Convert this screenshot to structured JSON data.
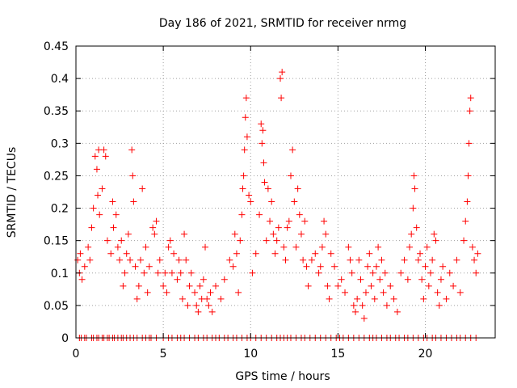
{
  "chart_data": {
    "type": "scatter",
    "title": "Day 186 of 2021, SRMTID for receiver nrmg",
    "xlabel": "GPS time / hours",
    "ylabel": "SRMTID / TECUs",
    "xlim": [
      0,
      24
    ],
    "ylim": [
      0,
      0.45
    ],
    "xticks": [
      "0",
      "5",
      "10",
      "15",
      "20"
    ],
    "yticks": [
      "0",
      "0.05",
      "0.1",
      "0.15",
      "0.2",
      "0.25",
      "0.3",
      "0.35",
      "0.4",
      "0.45"
    ],
    "grid": true,
    "marker": "+",
    "color": "#ff0000",
    "series": [
      {
        "name": "SRMTID",
        "points": [
          [
            0.1,
            0.12
          ],
          [
            0.2,
            0.1
          ],
          [
            0.25,
            0.13
          ],
          [
            0.35,
            0.09
          ],
          [
            0.5,
            0.11
          ],
          [
            0.7,
            0.14
          ],
          [
            0.8,
            0.12
          ],
          [
            0.9,
            0.17
          ],
          [
            1.0,
            0.2
          ],
          [
            1.1,
            0.28
          ],
          [
            1.2,
            0.26
          ],
          [
            1.25,
            0.22
          ],
          [
            1.3,
            0.29
          ],
          [
            1.35,
            0.19
          ],
          [
            1.5,
            0.23
          ],
          [
            1.6,
            0.29
          ],
          [
            1.7,
            0.28
          ],
          [
            1.8,
            0.15
          ],
          [
            2.0,
            0.13
          ],
          [
            2.1,
            0.21
          ],
          [
            2.15,
            0.17
          ],
          [
            2.3,
            0.19
          ],
          [
            2.4,
            0.14
          ],
          [
            2.5,
            0.12
          ],
          [
            2.6,
            0.15
          ],
          [
            2.7,
            0.08
          ],
          [
            2.8,
            0.1
          ],
          [
            2.9,
            0.13
          ],
          [
            3.0,
            0.16
          ],
          [
            3.1,
            0.12
          ],
          [
            3.2,
            0.29
          ],
          [
            3.25,
            0.25
          ],
          [
            3.3,
            0.21
          ],
          [
            3.4,
            0.11
          ],
          [
            3.5,
            0.06
          ],
          [
            3.6,
            0.08
          ],
          [
            3.7,
            0.12
          ],
          [
            3.8,
            0.23
          ],
          [
            3.9,
            0.1
          ],
          [
            4.0,
            0.14
          ],
          [
            4.1,
            0.07
          ],
          [
            4.2,
            0.11
          ],
          [
            4.4,
            0.17
          ],
          [
            4.5,
            0.16
          ],
          [
            4.6,
            0.18
          ],
          [
            4.7,
            0.1
          ],
          [
            4.8,
            0.12
          ],
          [
            5.0,
            0.08
          ],
          [
            5.1,
            0.1
          ],
          [
            5.2,
            0.07
          ],
          [
            5.3,
            0.14
          ],
          [
            5.4,
            0.15
          ],
          [
            5.5,
            0.1
          ],
          [
            5.6,
            0.13
          ],
          [
            5.8,
            0.09
          ],
          [
            5.9,
            0.12
          ],
          [
            6.0,
            0.1
          ],
          [
            6.1,
            0.06
          ],
          [
            6.2,
            0.16
          ],
          [
            6.3,
            0.12
          ],
          [
            6.4,
            0.05
          ],
          [
            6.5,
            0.08
          ],
          [
            6.6,
            0.1
          ],
          [
            6.8,
            0.07
          ],
          [
            6.9,
            0.05
          ],
          [
            7.0,
            0.04
          ],
          [
            7.1,
            0.08
          ],
          [
            7.2,
            0.06
          ],
          [
            7.3,
            0.09
          ],
          [
            7.4,
            0.14
          ],
          [
            7.5,
            0.06
          ],
          [
            7.6,
            0.05
          ],
          [
            7.7,
            0.07
          ],
          [
            7.8,
            0.04
          ],
          [
            8.0,
            0.08
          ],
          [
            8.3,
            0.06
          ],
          [
            8.5,
            0.09
          ],
          [
            8.8,
            0.12
          ],
          [
            9.0,
            0.11
          ],
          [
            9.1,
            0.16
          ],
          [
            9.2,
            0.13
          ],
          [
            9.3,
            0.07
          ],
          [
            9.4,
            0.15
          ],
          [
            9.5,
            0.19
          ],
          [
            9.55,
            0.23
          ],
          [
            9.6,
            0.25
          ],
          [
            9.65,
            0.29
          ],
          [
            9.7,
            0.34
          ],
          [
            9.75,
            0.37
          ],
          [
            9.8,
            0.31
          ],
          [
            9.9,
            0.22
          ],
          [
            10.0,
            0.21
          ],
          [
            10.1,
            0.1
          ],
          [
            10.3,
            0.13
          ],
          [
            10.5,
            0.19
          ],
          [
            10.6,
            0.33
          ],
          [
            10.65,
            0.3
          ],
          [
            10.7,
            0.32
          ],
          [
            10.75,
            0.27
          ],
          [
            10.8,
            0.24
          ],
          [
            10.9,
            0.15
          ],
          [
            11.0,
            0.23
          ],
          [
            11.1,
            0.18
          ],
          [
            11.2,
            0.21
          ],
          [
            11.3,
            0.16
          ],
          [
            11.4,
            0.13
          ],
          [
            11.5,
            0.15
          ],
          [
            11.6,
            0.17
          ],
          [
            11.7,
            0.4
          ],
          [
            11.75,
            0.37
          ],
          [
            11.8,
            0.41
          ],
          [
            11.9,
            0.14
          ],
          [
            12.0,
            0.12
          ],
          [
            12.1,
            0.17
          ],
          [
            12.2,
            0.18
          ],
          [
            12.3,
            0.25
          ],
          [
            12.4,
            0.29
          ],
          [
            12.5,
            0.21
          ],
          [
            12.6,
            0.14
          ],
          [
            12.7,
            0.23
          ],
          [
            12.8,
            0.19
          ],
          [
            12.9,
            0.16
          ],
          [
            13.0,
            0.12
          ],
          [
            13.1,
            0.18
          ],
          [
            13.2,
            0.11
          ],
          [
            13.3,
            0.08
          ],
          [
            13.5,
            0.12
          ],
          [
            13.7,
            0.13
          ],
          [
            13.9,
            0.1
          ],
          [
            14.0,
            0.11
          ],
          [
            14.1,
            0.14
          ],
          [
            14.2,
            0.18
          ],
          [
            14.3,
            0.16
          ],
          [
            14.4,
            0.08
          ],
          [
            14.5,
            0.06
          ],
          [
            14.6,
            0.13
          ],
          [
            14.8,
            0.11
          ],
          [
            15.0,
            0.08
          ],
          [
            15.2,
            0.09
          ],
          [
            15.4,
            0.07
          ],
          [
            15.6,
            0.14
          ],
          [
            15.7,
            0.12
          ],
          [
            15.8,
            0.1
          ],
          [
            15.9,
            0.05
          ],
          [
            16.0,
            0.04
          ],
          [
            16.1,
            0.06
          ],
          [
            16.2,
            0.12
          ],
          [
            16.3,
            0.09
          ],
          [
            16.4,
            0.05
          ],
          [
            16.5,
            0.03
          ],
          [
            16.6,
            0.07
          ],
          [
            16.7,
            0.11
          ],
          [
            16.8,
            0.13
          ],
          [
            16.9,
            0.08
          ],
          [
            17.0,
            0.1
          ],
          [
            17.1,
            0.06
          ],
          [
            17.2,
            0.11
          ],
          [
            17.3,
            0.14
          ],
          [
            17.4,
            0.09
          ],
          [
            17.5,
            0.12
          ],
          [
            17.6,
            0.07
          ],
          [
            17.7,
            0.1
          ],
          [
            17.8,
            0.05
          ],
          [
            18.0,
            0.08
          ],
          [
            18.2,
            0.06
          ],
          [
            18.4,
            0.04
          ],
          [
            18.6,
            0.1
          ],
          [
            18.8,
            0.12
          ],
          [
            19.0,
            0.09
          ],
          [
            19.1,
            0.14
          ],
          [
            19.2,
            0.16
          ],
          [
            19.3,
            0.2
          ],
          [
            19.35,
            0.25
          ],
          [
            19.4,
            0.23
          ],
          [
            19.5,
            0.17
          ],
          [
            19.6,
            0.12
          ],
          [
            19.7,
            0.13
          ],
          [
            19.8,
            0.09
          ],
          [
            19.9,
            0.06
          ],
          [
            20.0,
            0.11
          ],
          [
            20.1,
            0.14
          ],
          [
            20.2,
            0.08
          ],
          [
            20.3,
            0.1
          ],
          [
            20.4,
            0.12
          ],
          [
            20.5,
            0.16
          ],
          [
            20.6,
            0.15
          ],
          [
            20.7,
            0.07
          ],
          [
            20.8,
            0.05
          ],
          [
            20.9,
            0.09
          ],
          [
            21.0,
            0.11
          ],
          [
            21.2,
            0.06
          ],
          [
            21.4,
            0.1
          ],
          [
            21.6,
            0.08
          ],
          [
            21.8,
            0.12
          ],
          [
            22.0,
            0.07
          ],
          [
            22.2,
            0.15
          ],
          [
            22.3,
            0.18
          ],
          [
            22.4,
            0.21
          ],
          [
            22.45,
            0.25
          ],
          [
            22.5,
            0.3
          ],
          [
            22.55,
            0.35
          ],
          [
            22.6,
            0.37
          ],
          [
            22.7,
            0.14
          ],
          [
            22.8,
            0.12
          ],
          [
            22.9,
            0.1
          ],
          [
            23.0,
            0.13
          ]
        ],
        "zero_points": [
          0.2,
          0.3,
          0.5,
          0.6,
          0.9,
          1.0,
          1.2,
          1.3,
          1.5,
          1.6,
          1.8,
          1.9,
          2.1,
          2.2,
          2.4,
          2.6,
          2.7,
          2.9,
          3.1,
          3.3,
          3.5,
          3.8,
          4.0,
          4.2,
          4.3,
          4.6,
          5.0,
          5.3,
          5.5,
          5.8,
          6.0,
          6.2,
          6.5,
          6.8,
          7.0,
          7.3,
          7.5,
          7.8,
          8.0,
          8.2,
          8.5,
          8.7,
          9.0,
          9.2,
          9.5,
          9.8,
          10.0,
          10.3,
          10.6,
          10.9,
          11.2,
          11.5,
          11.7,
          11.9,
          12.1,
          12.3,
          12.6,
          12.9,
          13.1,
          13.4,
          13.7,
          14.0,
          14.3,
          14.6,
          14.9,
          15.1,
          15.3,
          15.6,
          15.9,
          16.2,
          16.5,
          16.8,
          17.0,
          17.2,
          17.5,
          17.8,
          18.0,
          18.3,
          18.5,
          18.8,
          19.0,
          19.3,
          19.6,
          19.9,
          20.1,
          20.4,
          20.6,
          20.9,
          21.2,
          21.5,
          21.8,
          22.0,
          22.3,
          22.6,
          22.9
        ]
      }
    ]
  }
}
